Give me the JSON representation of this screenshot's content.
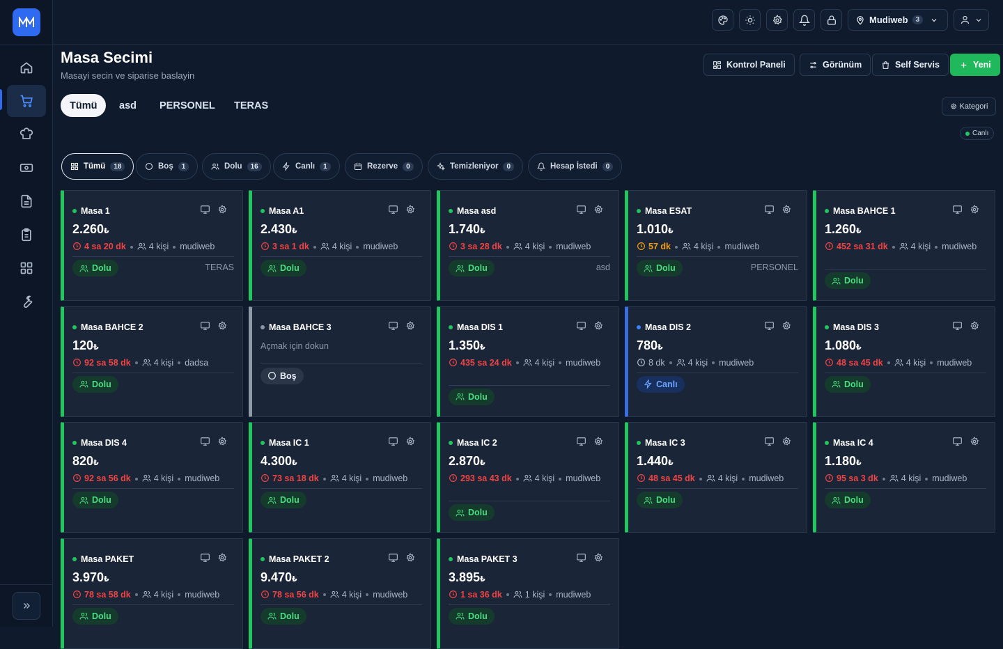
{
  "sidebar": {
    "logo": "M",
    "items": [
      "home",
      "orders",
      "kitchen",
      "cash",
      "documents",
      "reports",
      "apps",
      "tools"
    ]
  },
  "topbar": {
    "location": "Mudiweb",
    "location_count": "3"
  },
  "page": {
    "title": "Masa Secimi",
    "subtitle": "Masayi secin ve siparise baslayin"
  },
  "actions": {
    "dashboard": "Kontrol Paneli",
    "view": "Görünüm",
    "self_service": "Self Servis",
    "new": "Yeni"
  },
  "tabs": [
    "Tümü",
    "asd",
    "PERSONEL",
    "TERAS"
  ],
  "category_button": "Kategori",
  "live_label": "Canlı",
  "filters": [
    {
      "label": "Tümü",
      "count": "18"
    },
    {
      "label": "Boş",
      "count": "1"
    },
    {
      "label": "Dolu",
      "count": "16"
    },
    {
      "label": "Canlı",
      "count": "1"
    },
    {
      "label": "Rezerve",
      "count": "0"
    },
    {
      "label": "Temizleniyor",
      "count": "0"
    },
    {
      "label": "Hesap İstedi",
      "count": "0"
    }
  ],
  "currency": "₺",
  "tables": [
    {
      "name": "Masa 1",
      "amount": "2.260",
      "time": "4 sa 20 dk",
      "people": "4 kişi",
      "user": "mudiweb",
      "status": "Dolu",
      "category": "TERAS",
      "state": "full"
    },
    {
      "name": "Masa A1",
      "amount": "2.430",
      "time": "3 sa 1 dk",
      "people": "4 kişi",
      "user": "mudiweb",
      "status": "Dolu",
      "category": "",
      "state": "full"
    },
    {
      "name": "Masa asd",
      "amount": "1.740",
      "time": "3 sa 28 dk",
      "people": "4 kişi",
      "user": "mudiweb",
      "status": "Dolu",
      "category": "asd",
      "state": "full"
    },
    {
      "name": "Masa ESAT",
      "amount": "1.010",
      "time": "57 dk",
      "people": "4 kişi",
      "user": "mudiweb",
      "status": "Dolu",
      "category": "PERSONEL",
      "state": "full",
      "time_color": "orange"
    },
    {
      "name": "Masa BAHCE 1",
      "amount": "1.260",
      "time": "452 sa 31 dk",
      "people": "4 kişi",
      "user": "mudiweb",
      "status": "Dolu",
      "category": "",
      "state": "full",
      "wrap": true
    },
    {
      "name": "Masa BAHCE 2",
      "amount": "120",
      "time": "92 sa 58 dk",
      "people": "4 kişi",
      "user": "dadsa",
      "status": "Dolu",
      "category": "",
      "state": "full"
    },
    {
      "name": "Masa BAHCE 3",
      "hint": "Açmak için dokun",
      "status": "Boş",
      "state": "empty"
    },
    {
      "name": "Masa DIS 1",
      "amount": "1.350",
      "time": "435 sa 24 dk",
      "people": "4 kişi",
      "user": "mudiweb",
      "status": "Dolu",
      "category": "",
      "state": "full",
      "wrap": true
    },
    {
      "name": "Masa DIS 2",
      "amount": "780",
      "time": "8 dk",
      "people": "4 kişi",
      "user": "mudiweb",
      "status": "Canlı",
      "category": "",
      "state": "live",
      "time_color": "muted"
    },
    {
      "name": "Masa DIS 3",
      "amount": "1.080",
      "time": "48 sa 45 dk",
      "people": "4 kişi",
      "user": "mudiweb",
      "status": "Dolu",
      "category": "",
      "state": "full"
    },
    {
      "name": "Masa DIS 4",
      "amount": "820",
      "time": "92 sa 56 dk",
      "people": "4 kişi",
      "user": "mudiweb",
      "status": "Dolu",
      "category": "",
      "state": "full"
    },
    {
      "name": "Masa IC 1",
      "amount": "4.300",
      "time": "73 sa 18 dk",
      "people": "4 kişi",
      "user": "mudiweb",
      "status": "Dolu",
      "category": "",
      "state": "full"
    },
    {
      "name": "Masa IC 2",
      "amount": "2.870",
      "time": "293 sa 43 dk",
      "people": "4 kişi",
      "user": "mudiweb",
      "status": "Dolu",
      "category": "",
      "state": "full",
      "wrap": true
    },
    {
      "name": "Masa IC 3",
      "amount": "1.440",
      "time": "48 sa 45 dk",
      "people": "4 kişi",
      "user": "mudiweb",
      "status": "Dolu",
      "category": "",
      "state": "full"
    },
    {
      "name": "Masa IC 4",
      "amount": "1.180",
      "time": "95 sa 3 dk",
      "people": "4 kişi",
      "user": "mudiweb",
      "status": "Dolu",
      "category": "",
      "state": "full"
    },
    {
      "name": "Masa PAKET",
      "amount": "3.970",
      "time": "78 sa 58 dk",
      "people": "4 kişi",
      "user": "mudiweb",
      "status": "Dolu",
      "category": "",
      "state": "full"
    },
    {
      "name": "Masa PAKET 2",
      "amount": "9.470",
      "time": "78 sa 56 dk",
      "people": "4 kişi",
      "user": "mudiweb",
      "status": "Dolu",
      "category": "",
      "state": "full"
    },
    {
      "name": "Masa PAKET 3",
      "amount": "3.895",
      "time": "1 sa 36 dk",
      "people": "1 kişi",
      "user": "mudiweb",
      "status": "Dolu",
      "category": "",
      "state": "full"
    }
  ]
}
